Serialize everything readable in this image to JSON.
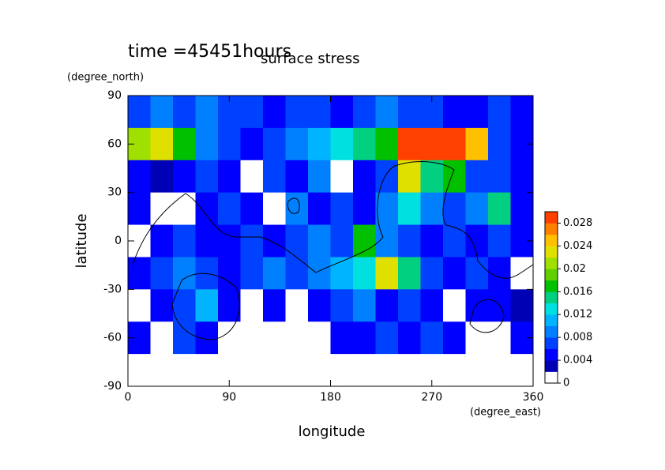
{
  "chart_data": {
    "type": "contour",
    "title": "surface stress",
    "subtitle": "time =45451hours",
    "x_label": "longitude",
    "x_units": "(degree_east)",
    "y_label": "latitude",
    "y_units": "(degree_north)",
    "xlim": [
      0,
      360
    ],
    "xticks": [
      0,
      90,
      180,
      270,
      360
    ],
    "ylim": [
      -90,
      90
    ],
    "yticks": [
      -90,
      -60,
      -30,
      0,
      30,
      60,
      90
    ],
    "x": [
      0,
      20,
      40,
      60,
      80,
      100,
      120,
      140,
      160,
      180,
      200,
      220,
      240,
      260,
      280,
      300,
      320,
      340,
      360
    ],
    "y": [
      90,
      70,
      50,
      30,
      10,
      -10,
      -30,
      -50,
      -70,
      -90
    ],
    "z": [
      [
        0.006,
        0.008,
        0.006,
        0.008,
        0.006,
        0.006,
        0.005,
        0.006,
        0.006,
        0.005,
        0.006,
        0.008,
        0.006,
        0.006,
        0.005,
        0.005,
        0.006,
        0.005
      ],
      [
        0.02,
        0.022,
        0.016,
        0.008,
        0.006,
        0.004,
        0.006,
        0.008,
        0.01,
        0.012,
        0.014,
        0.016,
        0.028,
        0.03,
        0.03,
        0.024,
        0.006,
        0.004
      ],
      [
        0.004,
        0.002,
        0.004,
        0.006,
        0.004,
        0.001,
        0.006,
        0.004,
        0.008,
        0.001,
        0.004,
        0.006,
        0.022,
        0.014,
        0.016,
        0.006,
        0.006,
        0.004
      ],
      [
        0.004,
        0.001,
        0.001,
        0.004,
        0.006,
        0.004,
        0.001,
        0.008,
        0.004,
        0.006,
        0.004,
        0.008,
        0.012,
        0.008,
        0.006,
        0.008,
        0.014,
        0.004
      ],
      [
        0.001,
        0.004,
        0.006,
        0.004,
        0.004,
        0.006,
        0.004,
        0.006,
        0.008,
        0.006,
        0.016,
        0.008,
        0.006,
        0.004,
        0.006,
        0.004,
        0.006,
        0.004
      ],
      [
        0.004,
        0.006,
        0.008,
        0.006,
        0.004,
        0.006,
        0.008,
        0.006,
        0.008,
        0.01,
        0.012,
        0.022,
        0.014,
        0.006,
        0.004,
        0.006,
        0.004,
        0.001
      ],
      [
        0.001,
        0.004,
        0.006,
        0.01,
        0.004,
        0.001,
        0.004,
        0.001,
        0.004,
        0.006,
        0.008,
        0.004,
        0.006,
        0.004,
        0.001,
        0.004,
        0.004,
        0.002
      ],
      [
        0.004,
        0.001,
        0.006,
        0.004,
        0.001,
        0.001,
        0.001,
        0.001,
        0.001,
        0.004,
        0.004,
        0.006,
        0.004,
        0.006,
        0.004,
        0.001,
        0.001,
        0.004
      ],
      [
        0,
        0,
        0,
        0,
        0,
        0,
        0,
        0,
        0,
        0,
        0,
        0,
        0,
        0,
        0,
        0,
        0,
        0
      ]
    ],
    "levels": [
      0,
      0.002,
      0.004,
      0.006,
      0.008,
      0.01,
      0.012,
      0.014,
      0.016,
      0.018,
      0.02,
      0.022,
      0.024,
      0.026,
      0.028,
      0.03
    ],
    "colors": [
      "#ffffff",
      "#0000b4",
      "#0000ff",
      "#0040ff",
      "#0080ff",
      "#00b4ff",
      "#00e0e0",
      "#00d080",
      "#00c000",
      "#60d000",
      "#a0e000",
      "#e0e000",
      "#ffc000",
      "#ff8000",
      "#ff4000"
    ],
    "colorbar_ticks": [
      0,
      0.004,
      0.008,
      0.012,
      0.016,
      0.02,
      0.024,
      0.028
    ]
  }
}
